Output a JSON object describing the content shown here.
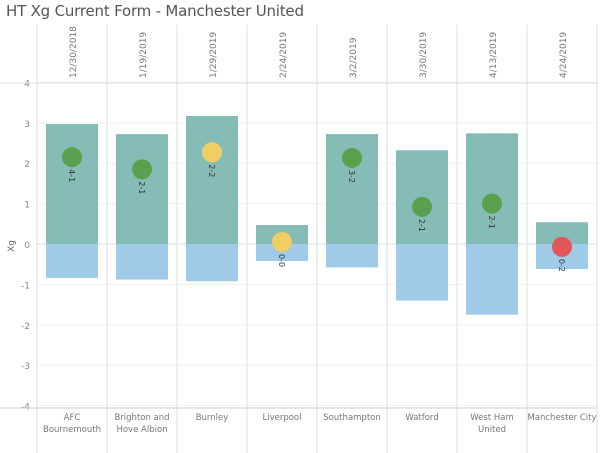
{
  "title": "HT Xg Current Form - Manchester United",
  "chart_data": {
    "type": "bar",
    "title": "HT Xg Current Form - Manchester United",
    "ylabel": "Xg",
    "ylim": [
      -4,
      4
    ],
    "yticks": [
      4,
      3,
      2,
      1,
      0,
      -1,
      -2,
      -3,
      -4
    ],
    "grid": true,
    "dates": [
      "12/30/2018",
      "1/19/2019",
      "1/29/2019",
      "2/24/2019",
      "3/2/2019",
      "3/30/2019",
      "4/13/2019",
      "4/24/2019"
    ],
    "categories": [
      [
        "AFC",
        "Bournemouth"
      ],
      [
        "Brighton and",
        "Hove Albion"
      ],
      [
        "Burnley"
      ],
      [
        "Liverpool"
      ],
      [
        "Southampton"
      ],
      [
        "Watford"
      ],
      [
        "West Ham",
        "United"
      ],
      [
        "Manchester City"
      ]
    ],
    "series": [
      {
        "values": [
          2.97,
          2.72,
          3.17,
          0.47,
          2.72,
          2.32,
          2.74,
          0.54
        ],
        "color": "#86bcb6"
      },
      {
        "values": [
          -0.84,
          -0.88,
          -0.92,
          -0.42,
          -0.58,
          -1.4,
          -1.75,
          -0.62
        ],
        "color": "#a0cbe8"
      }
    ],
    "points": {
      "values": [
        2.15,
        1.85,
        2.27,
        0.05,
        2.13,
        0.92,
        1.0,
        -0.07
      ],
      "scores": [
        "4-1",
        "2-1",
        "2-2",
        "0-0",
        "3-2",
        "2-1",
        "2-1",
        "0-2"
      ],
      "results": [
        "win",
        "win",
        "draw",
        "draw",
        "win",
        "win",
        "win",
        "loss"
      ]
    },
    "result_colors": {
      "win": "#59a14f",
      "draw": "#f1ce63",
      "loss": "#e15759"
    }
  }
}
